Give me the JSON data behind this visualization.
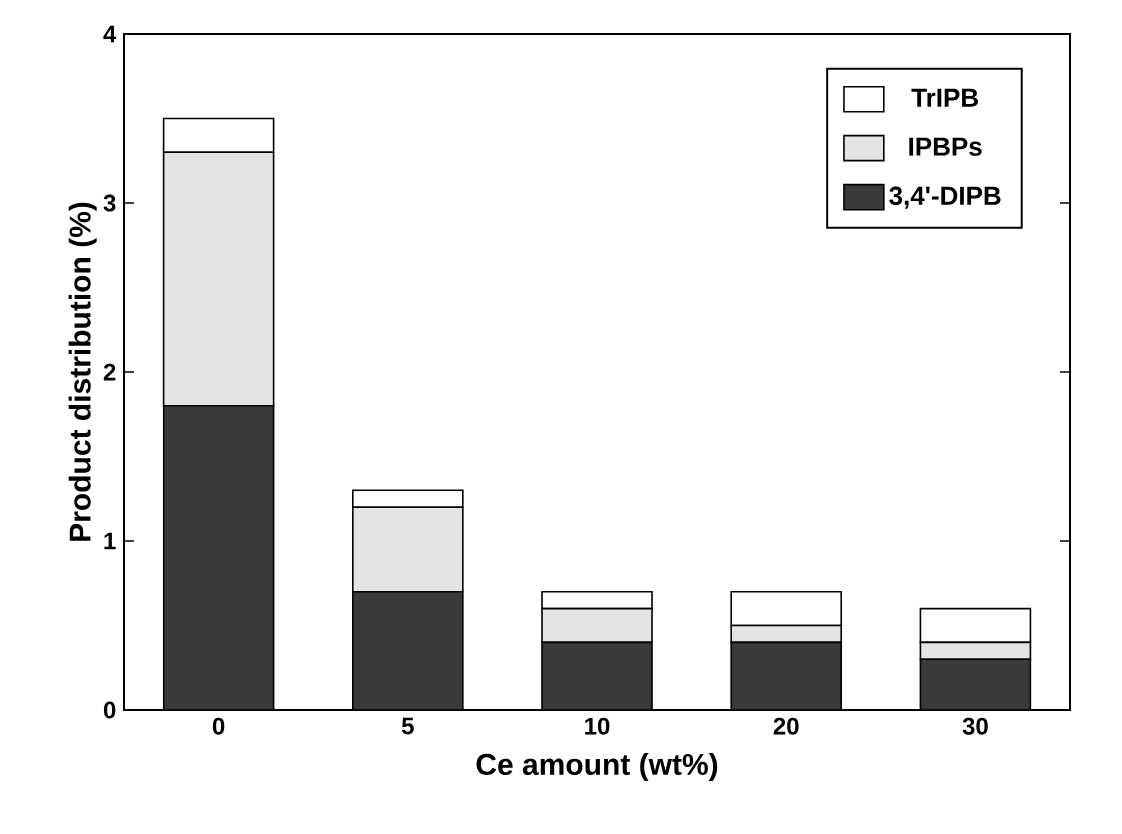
{
  "chart_data": {
    "type": "bar",
    "stacked": true,
    "xlabel": "Ce amount (wt%)",
    "ylabel": "Product distribution (%)",
    "categories": [
      "0",
      "5",
      "10",
      "20",
      "30"
    ],
    "series": [
      {
        "name": "3,4'-DIPB",
        "color": "#3a3a3a",
        "values": [
          1.8,
          0.7,
          0.4,
          0.4,
          0.3
        ]
      },
      {
        "name": "IPBPs",
        "color": "#e4e4e4",
        "values": [
          1.5,
          0.5,
          0.2,
          0.1,
          0.1
        ]
      },
      {
        "name": "TrIPB",
        "color": "#ffffff",
        "values": [
          0.2,
          0.1,
          0.1,
          0.2,
          0.2
        ]
      }
    ],
    "ylim": [
      0,
      4
    ],
    "yticks": [
      0,
      1,
      2,
      3,
      4
    ],
    "legend": "top right"
  }
}
